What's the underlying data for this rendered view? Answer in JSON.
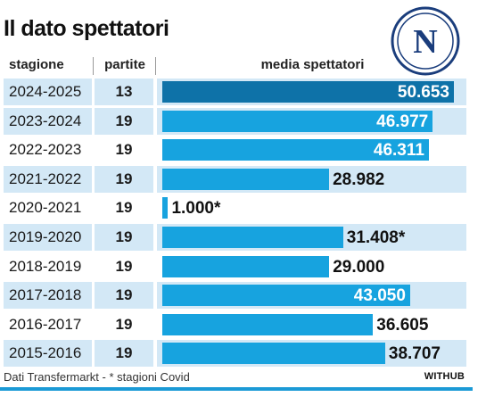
{
  "header": {
    "title": "Il dato spettatori",
    "logo_letter": "N"
  },
  "table": {
    "col_season": "stagione",
    "col_games": "partite",
    "col_avg": "media spettatori"
  },
  "colors": {
    "bar": "#17a3df",
    "bar_latest": "#0e72a8",
    "row_alt": "#d3e8f6",
    "rule": "#1b9ad6"
  },
  "chart_data": {
    "type": "bar",
    "orientation": "horizontal",
    "title": "Il dato spettatori",
    "xlabel": "media spettatori",
    "ylabel": "stagione",
    "xlim": [
      0,
      50653
    ],
    "categories": [
      "2024-2025",
      "2023-2024",
      "2022-2023",
      "2021-2022",
      "2020-2021",
      "2019-2020",
      "2018-2019",
      "2017-2018",
      "2016-2017",
      "2015-2016"
    ],
    "games": [
      "13",
      "19",
      "19",
      "19",
      "19",
      "19",
      "19",
      "19",
      "19",
      "19"
    ],
    "values": [
      50653,
      46977,
      46311,
      28982,
      1000,
      31408,
      29000,
      43050,
      36605,
      38707
    ],
    "labels": [
      "50.653",
      "46.977",
      "46.311",
      "28.982",
      "1.000*",
      "31.408*",
      "29.000",
      "43.050",
      "36.605",
      "38.707"
    ],
    "label_inside": [
      true,
      true,
      true,
      false,
      false,
      false,
      false,
      true,
      false,
      false
    ],
    "alt_rows": [
      true,
      true,
      false,
      true,
      false,
      true,
      false,
      true,
      false,
      true
    ]
  },
  "footer": {
    "source": "Dati Transfermarkt - * stagioni Covid",
    "brand": "WITHUB"
  }
}
